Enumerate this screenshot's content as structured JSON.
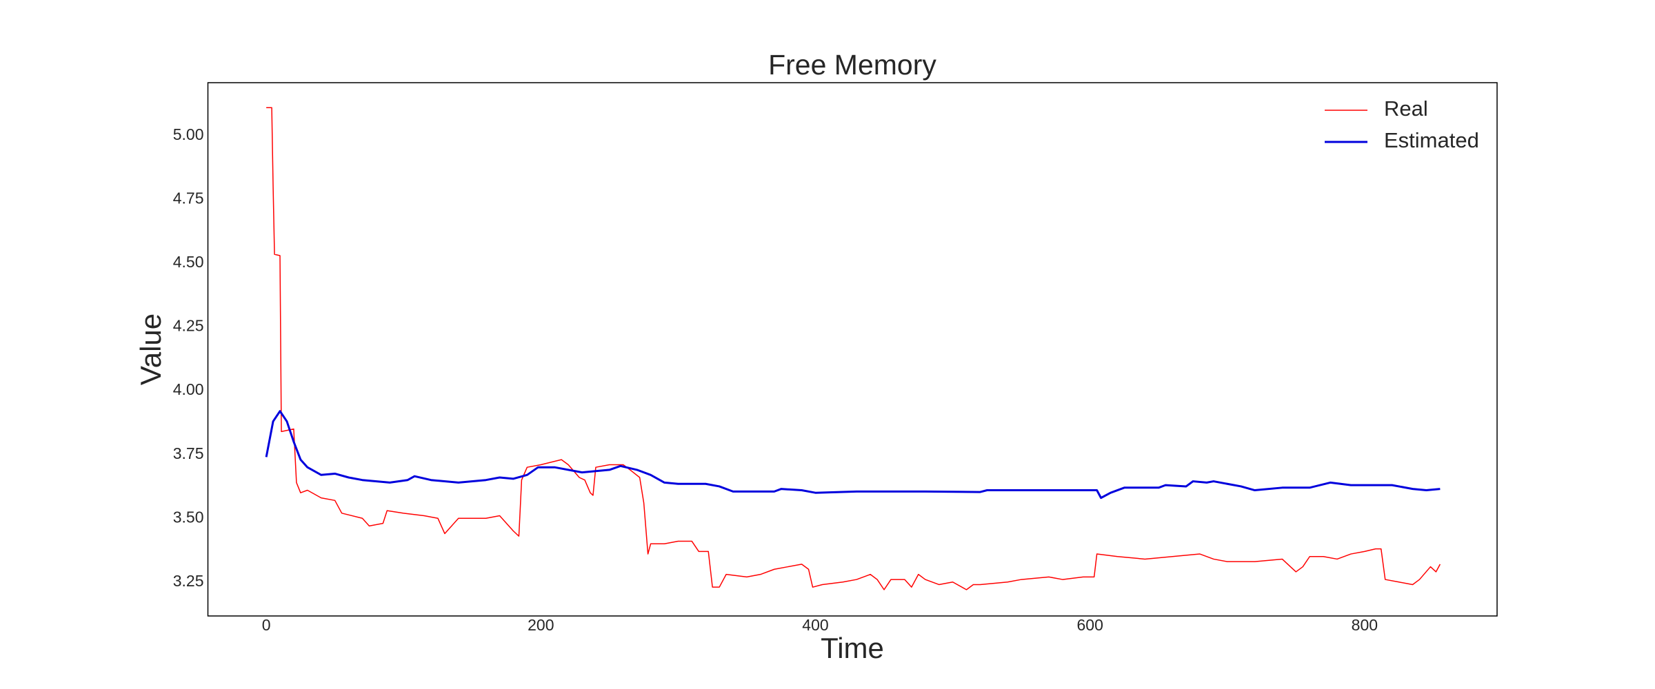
{
  "chart_data": {
    "type": "line",
    "title": "Free Memory",
    "x_label": "Time",
    "y_label": "Value",
    "xlim": [
      -42.5,
      896.5
    ],
    "ylim": [
      3.117,
      5.208
    ],
    "xticks": [
      0,
      200,
      400,
      600,
      800
    ],
    "yticks": [
      {
        "value": 3.25,
        "label": "3.25"
      },
      {
        "value": 3.5,
        "label": "3.50"
      },
      {
        "value": 3.75,
        "label": "3.75"
      },
      {
        "value": 4,
        "label": "4.00"
      },
      {
        "value": 4.25,
        "label": "4.25"
      },
      {
        "value": 4.5,
        "label": "4.50"
      },
      {
        "value": 4.75,
        "label": "4.75"
      },
      {
        "value": 5,
        "label": "5.00"
      }
    ],
    "grid": false,
    "legend": "upper right",
    "series": [
      {
        "name": "Real",
        "color": "#ff0000",
        "width": 1.5,
        "x": [
          0,
          4,
          5,
          6,
          10,
          11,
          20,
          22,
          25,
          30,
          40,
          50,
          55,
          70,
          75,
          85,
          88,
          100,
          115,
          125,
          130,
          135,
          140,
          160,
          170,
          180,
          184,
          186,
          190,
          200,
          215,
          220,
          228,
          232,
          236,
          238,
          240,
          250,
          260,
          265,
          272,
          275,
          278,
          280,
          290,
          300,
          310,
          315,
          322,
          325,
          330,
          335,
          350,
          360,
          370,
          380,
          390,
          395,
          398,
          405,
          420,
          430,
          440,
          445,
          450,
          455,
          465,
          470,
          475,
          480,
          490,
          500,
          510,
          515,
          520,
          540,
          550,
          570,
          580,
          595,
          603,
          605,
          620,
          640,
          660,
          680,
          690,
          700,
          720,
          740,
          750,
          755,
          760,
          770,
          780,
          790,
          800,
          808,
          812,
          815,
          825,
          835,
          840,
          848,
          852,
          855
        ],
        "values": [
          5.11,
          5.11,
          4.8,
          4.535,
          4.53,
          3.84,
          3.85,
          3.64,
          3.6,
          3.61,
          3.58,
          3.57,
          3.52,
          3.5,
          3.47,
          3.48,
          3.53,
          3.52,
          3.51,
          3.5,
          3.44,
          3.47,
          3.5,
          3.5,
          3.51,
          3.45,
          3.43,
          3.65,
          3.7,
          3.71,
          3.73,
          3.71,
          3.66,
          3.65,
          3.6,
          3.59,
          3.7,
          3.71,
          3.71,
          3.69,
          3.66,
          3.56,
          3.36,
          3.4,
          3.4,
          3.41,
          3.41,
          3.37,
          3.37,
          3.23,
          3.23,
          3.28,
          3.27,
          3.28,
          3.3,
          3.31,
          3.32,
          3.3,
          3.23,
          3.24,
          3.25,
          3.26,
          3.28,
          3.26,
          3.22,
          3.26,
          3.26,
          3.23,
          3.28,
          3.26,
          3.24,
          3.25,
          3.22,
          3.24,
          3.24,
          3.25,
          3.26,
          3.27,
          3.26,
          3.27,
          3.27,
          3.36,
          3.35,
          3.34,
          3.35,
          3.36,
          3.34,
          3.33,
          3.33,
          3.34,
          3.29,
          3.31,
          3.35,
          3.35,
          3.34,
          3.36,
          3.37,
          3.38,
          3.38,
          3.26,
          3.25,
          3.24,
          3.26,
          3.31,
          3.29,
          3.32
        ]
      },
      {
        "name": "Estimated",
        "color": "#0000dd",
        "width": 3,
        "x": [
          0,
          5,
          10,
          15,
          20,
          25,
          30,
          40,
          50,
          60,
          70,
          90,
          103,
          108,
          120,
          140,
          160,
          170,
          180,
          190,
          198,
          210,
          230,
          250,
          258,
          270,
          280,
          290,
          300,
          320,
          330,
          340,
          370,
          375,
          390,
          400,
          430,
          460,
          480,
          520,
          525,
          560,
          600,
          605,
          608,
          615,
          625,
          650,
          655,
          670,
          675,
          685,
          690,
          710,
          720,
          740,
          760,
          775,
          790,
          820,
          835,
          845,
          855
        ],
        "values": [
          3.74,
          3.88,
          3.92,
          3.88,
          3.8,
          3.73,
          3.7,
          3.67,
          3.675,
          3.66,
          3.65,
          3.64,
          3.65,
          3.665,
          3.65,
          3.64,
          3.65,
          3.66,
          3.655,
          3.67,
          3.7,
          3.7,
          3.68,
          3.69,
          3.705,
          3.69,
          3.67,
          3.64,
          3.635,
          3.635,
          3.625,
          3.605,
          3.605,
          3.615,
          3.61,
          3.6,
          3.605,
          3.605,
          3.605,
          3.603,
          3.61,
          3.61,
          3.61,
          3.61,
          3.58,
          3.6,
          3.62,
          3.62,
          3.63,
          3.625,
          3.645,
          3.64,
          3.645,
          3.625,
          3.61,
          3.62,
          3.62,
          3.64,
          3.63,
          3.63,
          3.615,
          3.61,
          3.615
        ]
      }
    ]
  }
}
